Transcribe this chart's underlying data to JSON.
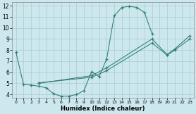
{
  "xlabel": "Humidex (Indice chaleur)",
  "bg_color": "#cce8ee",
  "line_color": "#2e7d6e",
  "grid_color": "#aacccc",
  "xlim": [
    -0.5,
    23.5
  ],
  "ylim": [
    3.7,
    12.3
  ],
  "xticks": [
    0,
    1,
    2,
    3,
    4,
    5,
    6,
    7,
    8,
    9,
    10,
    11,
    12,
    13,
    14,
    15,
    16,
    17,
    18,
    19,
    20,
    21,
    22,
    23
  ],
  "yticks": [
    4,
    5,
    6,
    7,
    8,
    9,
    10,
    11,
    12
  ],
  "series": [
    {
      "x": [
        0,
        1,
        2,
        3,
        4,
        5,
        6,
        7,
        8,
        9,
        10,
        11,
        12,
        13,
        14,
        15,
        16,
        17,
        18
      ],
      "y": [
        7.8,
        4.9,
        4.85,
        4.75,
        4.6,
        4.05,
        3.85,
        3.85,
        4.0,
        4.35,
        6.05,
        5.6,
        7.2,
        11.1,
        11.85,
        11.95,
        11.85,
        11.4,
        9.5
      ]
    },
    {
      "x": [
        3,
        10,
        12,
        18,
        20,
        21,
        23
      ],
      "y": [
        5.0,
        5.7,
        6.4,
        9.0,
        7.6,
        8.1,
        9.3
      ]
    },
    {
      "x": [
        3,
        10,
        12,
        18,
        20,
        21,
        23
      ],
      "y": [
        5.05,
        5.55,
        6.15,
        8.65,
        7.55,
        8.0,
        9.0
      ]
    }
  ]
}
